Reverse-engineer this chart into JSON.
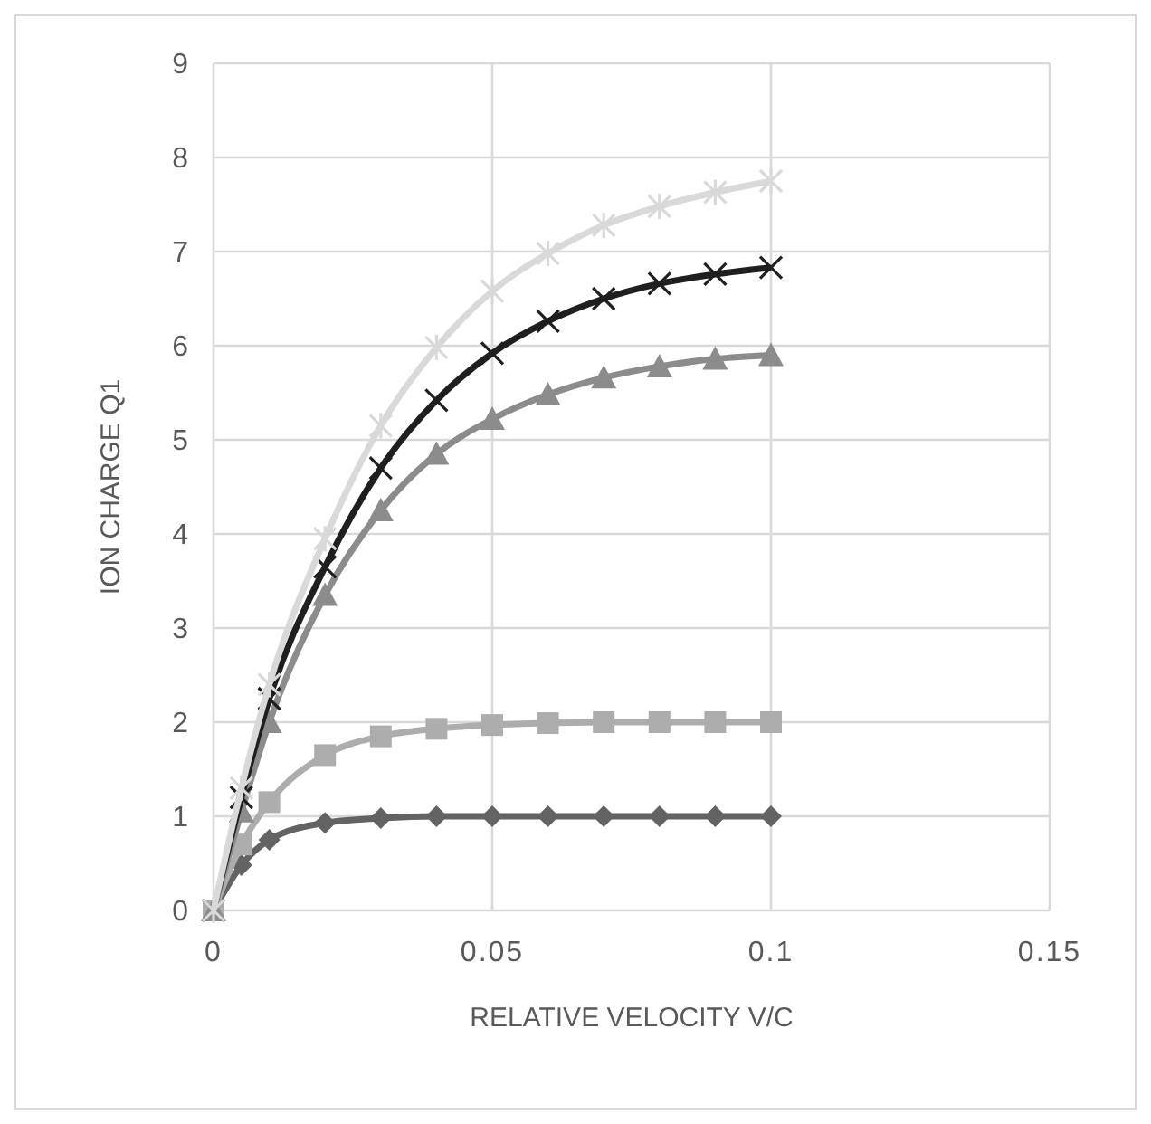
{
  "chart_data": {
    "type": "line",
    "xlabel": "RELATIVE VELOCITY V/C",
    "ylabel": "ION CHARGE Q1",
    "x": [
      0,
      0.005,
      0.01,
      0.02,
      0.03,
      0.04,
      0.05,
      0.06,
      0.07,
      0.08,
      0.09,
      0.1
    ],
    "xlim": [
      0,
      0.15
    ],
    "xticks": [
      {
        "value": 0,
        "label": "0"
      },
      {
        "value": 0.05,
        "label": "0.05"
      },
      {
        "value": 0.1,
        "label": "0.1"
      },
      {
        "value": 0.15,
        "label": "0.15"
      }
    ],
    "ylim": [
      0,
      9
    ],
    "yticks": [
      0,
      1,
      2,
      3,
      4,
      5,
      6,
      7,
      8,
      9
    ],
    "grid": true,
    "series": [
      {
        "color": "#636363",
        "marker": "diamond",
        "values": [
          0,
          0.48,
          0.75,
          0.93,
          0.98,
          1,
          1,
          1,
          1,
          1,
          1,
          1
        ]
      },
      {
        "color": "#adadad",
        "marker": "square",
        "values": [
          0,
          0.7,
          1.15,
          1.65,
          1.85,
          1.93,
          1.97,
          1.99,
          2,
          2,
          2,
          2
        ]
      },
      {
        "color": "#8c8c8c",
        "marker": "triangle",
        "values": [
          0,
          1.05,
          2.0,
          3.35,
          4.25,
          4.85,
          5.22,
          5.48,
          5.66,
          5.78,
          5.86,
          5.9
        ]
      },
      {
        "color": "#1f1f1f",
        "marker": "cross",
        "values": [
          0,
          1.2,
          2.25,
          3.65,
          4.7,
          5.42,
          5.92,
          6.26,
          6.5,
          6.66,
          6.76,
          6.83
        ]
      },
      {
        "color": "#d9d9d9",
        "marker": "cross",
        "values": [
          0,
          1.3,
          2.4,
          3.95,
          5.15,
          5.98,
          6.58,
          6.98,
          7.28,
          7.48,
          7.63,
          7.75
        ]
      }
    ]
  }
}
